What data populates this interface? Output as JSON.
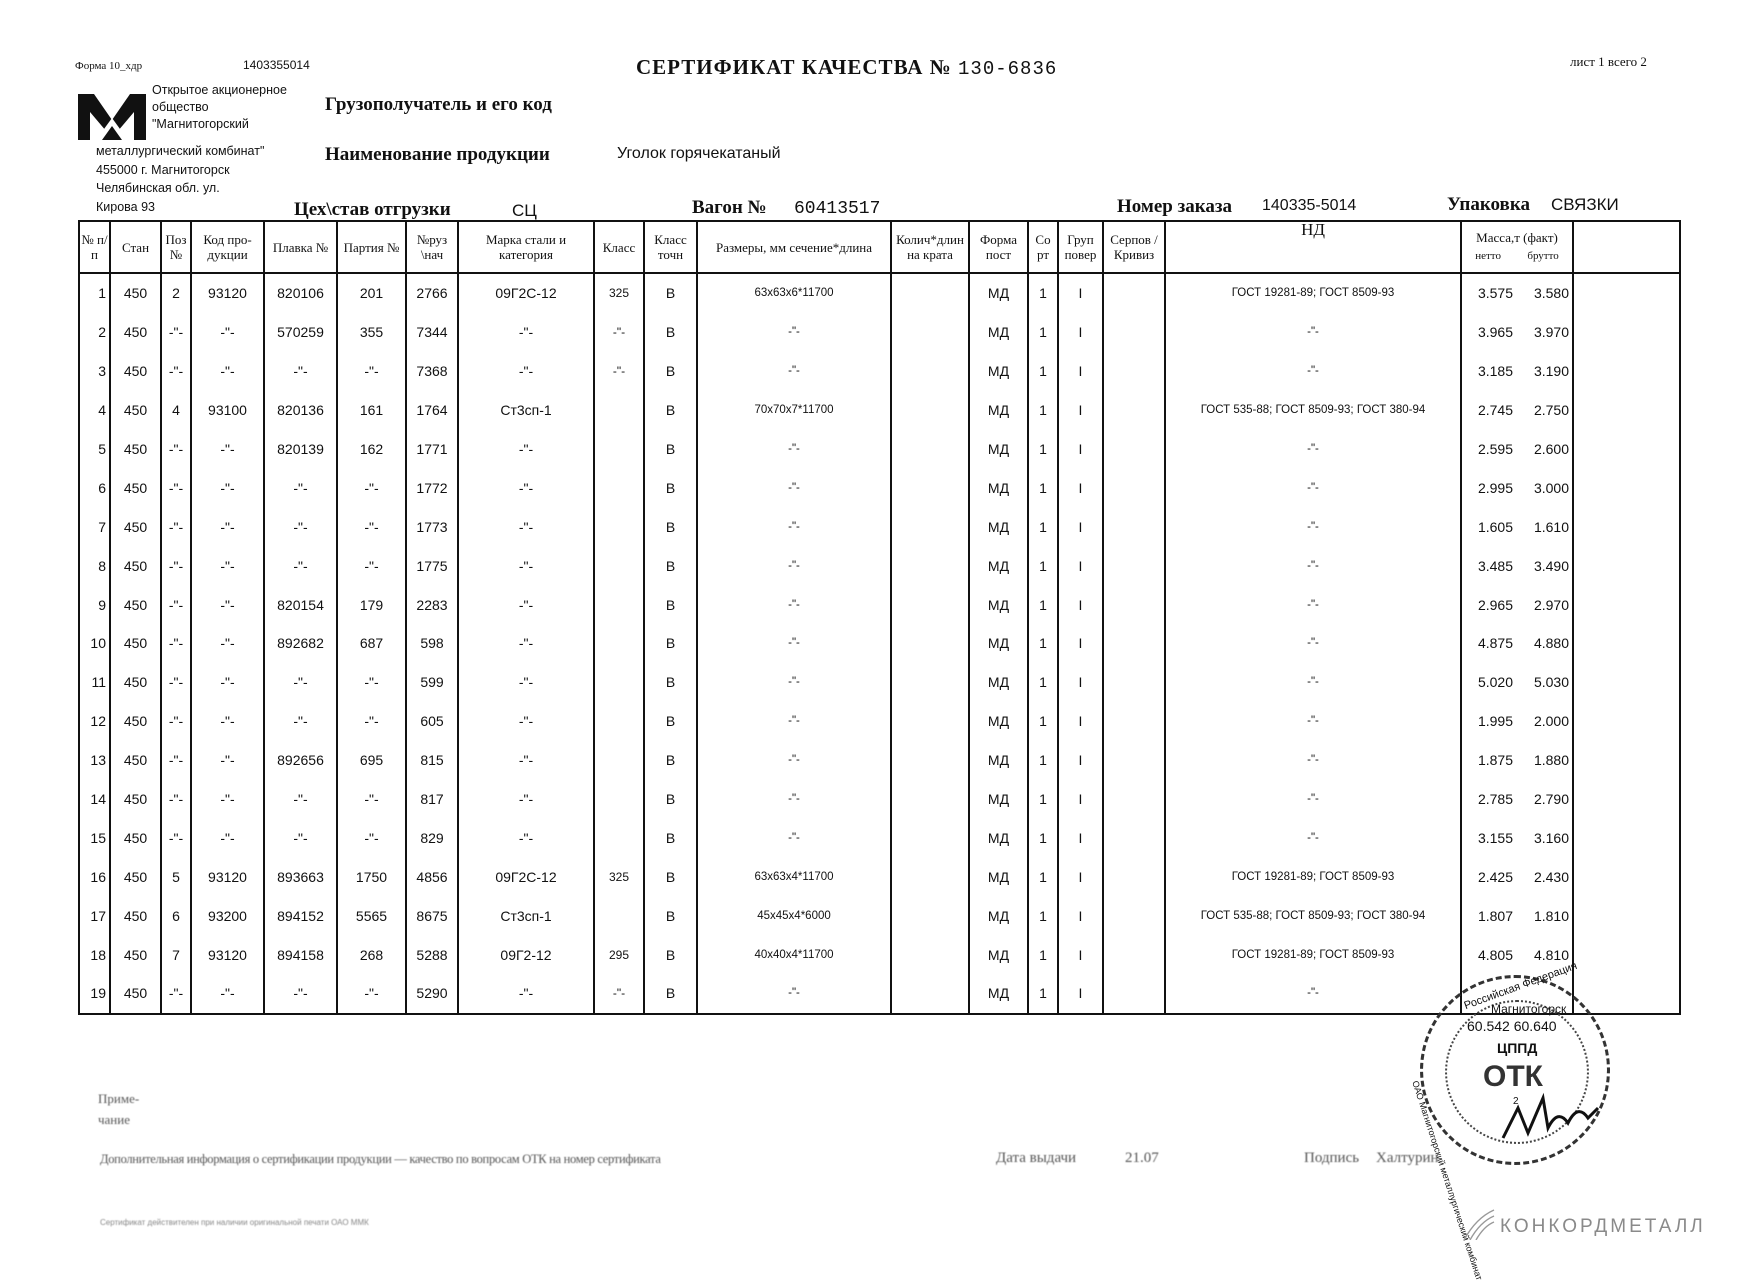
{
  "header": {
    "form_label": "Форма 10_хдр",
    "form_code": "1403355014",
    "title": "СЕРТИФИКАТ КАЧЕСТВА",
    "number_sign": "№",
    "certificate_number": "130-6836",
    "sheet": "лист 1 всего 2"
  },
  "company": {
    "line1": "Открытое акционерное",
    "line2": "общество",
    "line3": "\"Магнитогорский",
    "line4": "металлургический комбинат\"",
    "line5": "455000 г. Магнитогорск",
    "line6": "Челябинская обл. ул.",
    "line7": "Кирова 93"
  },
  "fields": {
    "consignee_label": "Грузополучатель и его код",
    "product_label": "Наименование продукции",
    "product_value": "Уголок горячекатаный",
    "shop_label": "Цех\\став отгрузки",
    "shop_value": "СЦ",
    "wagon_label": "Вагон №",
    "wagon_value": "60413517",
    "order_label": "Номер заказа",
    "order_value": "140335-5014",
    "package_label": "Упаковка",
    "package_value": "СВЯЗКИ"
  },
  "table": {
    "columns": [
      "№ п/п",
      "Стан",
      "Поз №",
      "Код про- дукции",
      "Плавка №",
      "Партия №",
      "№руз \\нач",
      "Марка стали и категория",
      "Класс",
      "Класс точн",
      "Размеры, мм сечение*длина",
      "Колич*длин на крата",
      "Форма пост",
      "Со рт",
      "Груп повер",
      "Серпов /Кривиз",
      "НД"
    ],
    "mass_header": "Масса,т (факт)",
    "mass_netto": "нетто",
    "mass_brutto": "брутто",
    "rows": [
      [
        "1",
        "450",
        "2",
        "93120",
        "820106",
        "201",
        "2766",
        "09Г2С-12",
        "325",
        "В",
        "63x63x6*11700",
        "",
        "МД",
        "1",
        "I",
        "",
        "ГОСТ 19281-89; ГОСТ 8509-93",
        "3.575",
        "3.580"
      ],
      [
        "2",
        "450",
        "-\"-",
        "-\"-",
        "570259",
        "355",
        "7344",
        "-\"-",
        "-\"-",
        "В",
        "-\"-",
        "",
        "МД",
        "1",
        "I",
        "",
        "-\"-",
        "3.965",
        "3.970"
      ],
      [
        "3",
        "450",
        "-\"-",
        "-\"-",
        "-\"-",
        "-\"-",
        "7368",
        "-\"-",
        "-\"-",
        "В",
        "-\"-",
        "",
        "МД",
        "1",
        "I",
        "",
        "-\"-",
        "3.185",
        "3.190"
      ],
      [
        "4",
        "450",
        "4",
        "93100",
        "820136",
        "161",
        "1764",
        "Ст3сп-1",
        "",
        "В",
        "70x70x7*11700",
        "",
        "МД",
        "1",
        "I",
        "",
        "ГОСТ 535-88; ГОСТ 8509-93; ГОСТ 380-94",
        "2.745",
        "2.750"
      ],
      [
        "5",
        "450",
        "-\"-",
        "-\"-",
        "820139",
        "162",
        "1771",
        "-\"-",
        "",
        "В",
        "-\"-",
        "",
        "МД",
        "1",
        "I",
        "",
        "-\"-",
        "2.595",
        "2.600"
      ],
      [
        "6",
        "450",
        "-\"-",
        "-\"-",
        "-\"-",
        "-\"-",
        "1772",
        "-\"-",
        "",
        "В",
        "-\"-",
        "",
        "МД",
        "1",
        "I",
        "",
        "-\"-",
        "2.995",
        "3.000"
      ],
      [
        "7",
        "450",
        "-\"-",
        "-\"-",
        "-\"-",
        "-\"-",
        "1773",
        "-\"-",
        "",
        "В",
        "-\"-",
        "",
        "МД",
        "1",
        "I",
        "",
        "-\"-",
        "1.605",
        "1.610"
      ],
      [
        "8",
        "450",
        "-\"-",
        "-\"-",
        "-\"-",
        "-\"-",
        "1775",
        "-\"-",
        "",
        "В",
        "-\"-",
        "",
        "МД",
        "1",
        "I",
        "",
        "-\"-",
        "3.485",
        "3.490"
      ],
      [
        "9",
        "450",
        "-\"-",
        "-\"-",
        "820154",
        "179",
        "2283",
        "-\"-",
        "",
        "В",
        "-\"-",
        "",
        "МД",
        "1",
        "I",
        "",
        "-\"-",
        "2.965",
        "2.970"
      ],
      [
        "10",
        "450",
        "-\"-",
        "-\"-",
        "892682",
        "687",
        "598",
        "-\"-",
        "",
        "В",
        "-\"-",
        "",
        "МД",
        "1",
        "I",
        "",
        "-\"-",
        "4.875",
        "4.880"
      ],
      [
        "11",
        "450",
        "-\"-",
        "-\"-",
        "-\"-",
        "-\"-",
        "599",
        "-\"-",
        "",
        "В",
        "-\"-",
        "",
        "МД",
        "1",
        "I",
        "",
        "-\"-",
        "5.020",
        "5.030"
      ],
      [
        "12",
        "450",
        "-\"-",
        "-\"-",
        "-\"-",
        "-\"-",
        "605",
        "-\"-",
        "",
        "В",
        "-\"-",
        "",
        "МД",
        "1",
        "I",
        "",
        "-\"-",
        "1.995",
        "2.000"
      ],
      [
        "13",
        "450",
        "-\"-",
        "-\"-",
        "892656",
        "695",
        "815",
        "-\"-",
        "",
        "В",
        "-\"-",
        "",
        "МД",
        "1",
        "I",
        "",
        "-\"-",
        "1.875",
        "1.880"
      ],
      [
        "14",
        "450",
        "-\"-",
        "-\"-",
        "-\"-",
        "-\"-",
        "817",
        "-\"-",
        "",
        "В",
        "-\"-",
        "",
        "МД",
        "1",
        "I",
        "",
        "-\"-",
        "2.785",
        "2.790"
      ],
      [
        "15",
        "450",
        "-\"-",
        "-\"-",
        "-\"-",
        "-\"-",
        "829",
        "-\"-",
        "",
        "В",
        "-\"-",
        "",
        "МД",
        "1",
        "I",
        "",
        "-\"-",
        "3.155",
        "3.160"
      ],
      [
        "16",
        "450",
        "5",
        "93120",
        "893663",
        "1750",
        "4856",
        "09Г2С-12",
        "325",
        "В",
        "63x63x4*11700",
        "",
        "МД",
        "1",
        "I",
        "",
        "ГОСТ 19281-89; ГОСТ 8509-93",
        "2.425",
        "2.430"
      ],
      [
        "17",
        "450",
        "6",
        "93200",
        "894152",
        "5565",
        "8675",
        "Ст3сп-1",
        "",
        "В",
        "45x45x4*6000",
        "",
        "МД",
        "1",
        "I",
        "",
        "ГОСТ 535-88; ГОСТ 8509-93; ГОСТ 380-94",
        "1.807",
        "1.810"
      ],
      [
        "18",
        "450",
        "7",
        "93120",
        "894158",
        "268",
        "5288",
        "09Г2-12",
        "295",
        "В",
        "40x40x4*11700",
        "",
        "МД",
        "1",
        "I",
        "",
        "ГОСТ 19281-89; ГОСТ 8509-93",
        "4.805",
        "4.810"
      ],
      [
        "19",
        "450",
        "-\"-",
        "-\"-",
        "-\"-",
        "-\"-",
        "5290",
        "-\"-",
        "-\"-",
        "В",
        "-\"-",
        "",
        "МД",
        "1",
        "I",
        "",
        "-\"-",
        "",
        ""
      ]
    ],
    "total_netto": "60.542",
    "total_brutto": "60.640"
  },
  "stamp": {
    "text_top": "Российская Федерация",
    "text_city": "Магнитогорск",
    "text_center": "ЦППД",
    "text_ring": "ОАО Магнитогорский металлургический комбинат",
    "text_num": "2"
  },
  "footer": {
    "note_label_1": "Приме-",
    "note_label_2": "чание",
    "info_line": "Дополнительная информация о сертификации продукции — качество по вопросам ОТК на номер сертификата",
    "issue_date_label": "Дата выдачи",
    "issue_date_value": "21.07",
    "signature_label": "Подпись",
    "signature_name": "Халтурин",
    "fine_print": "Сертификат действителен при наличии оригинальной печати ОАО ММК"
  },
  "watermark": {
    "brand": "КОНКОРДМЕТАЛЛ"
  }
}
